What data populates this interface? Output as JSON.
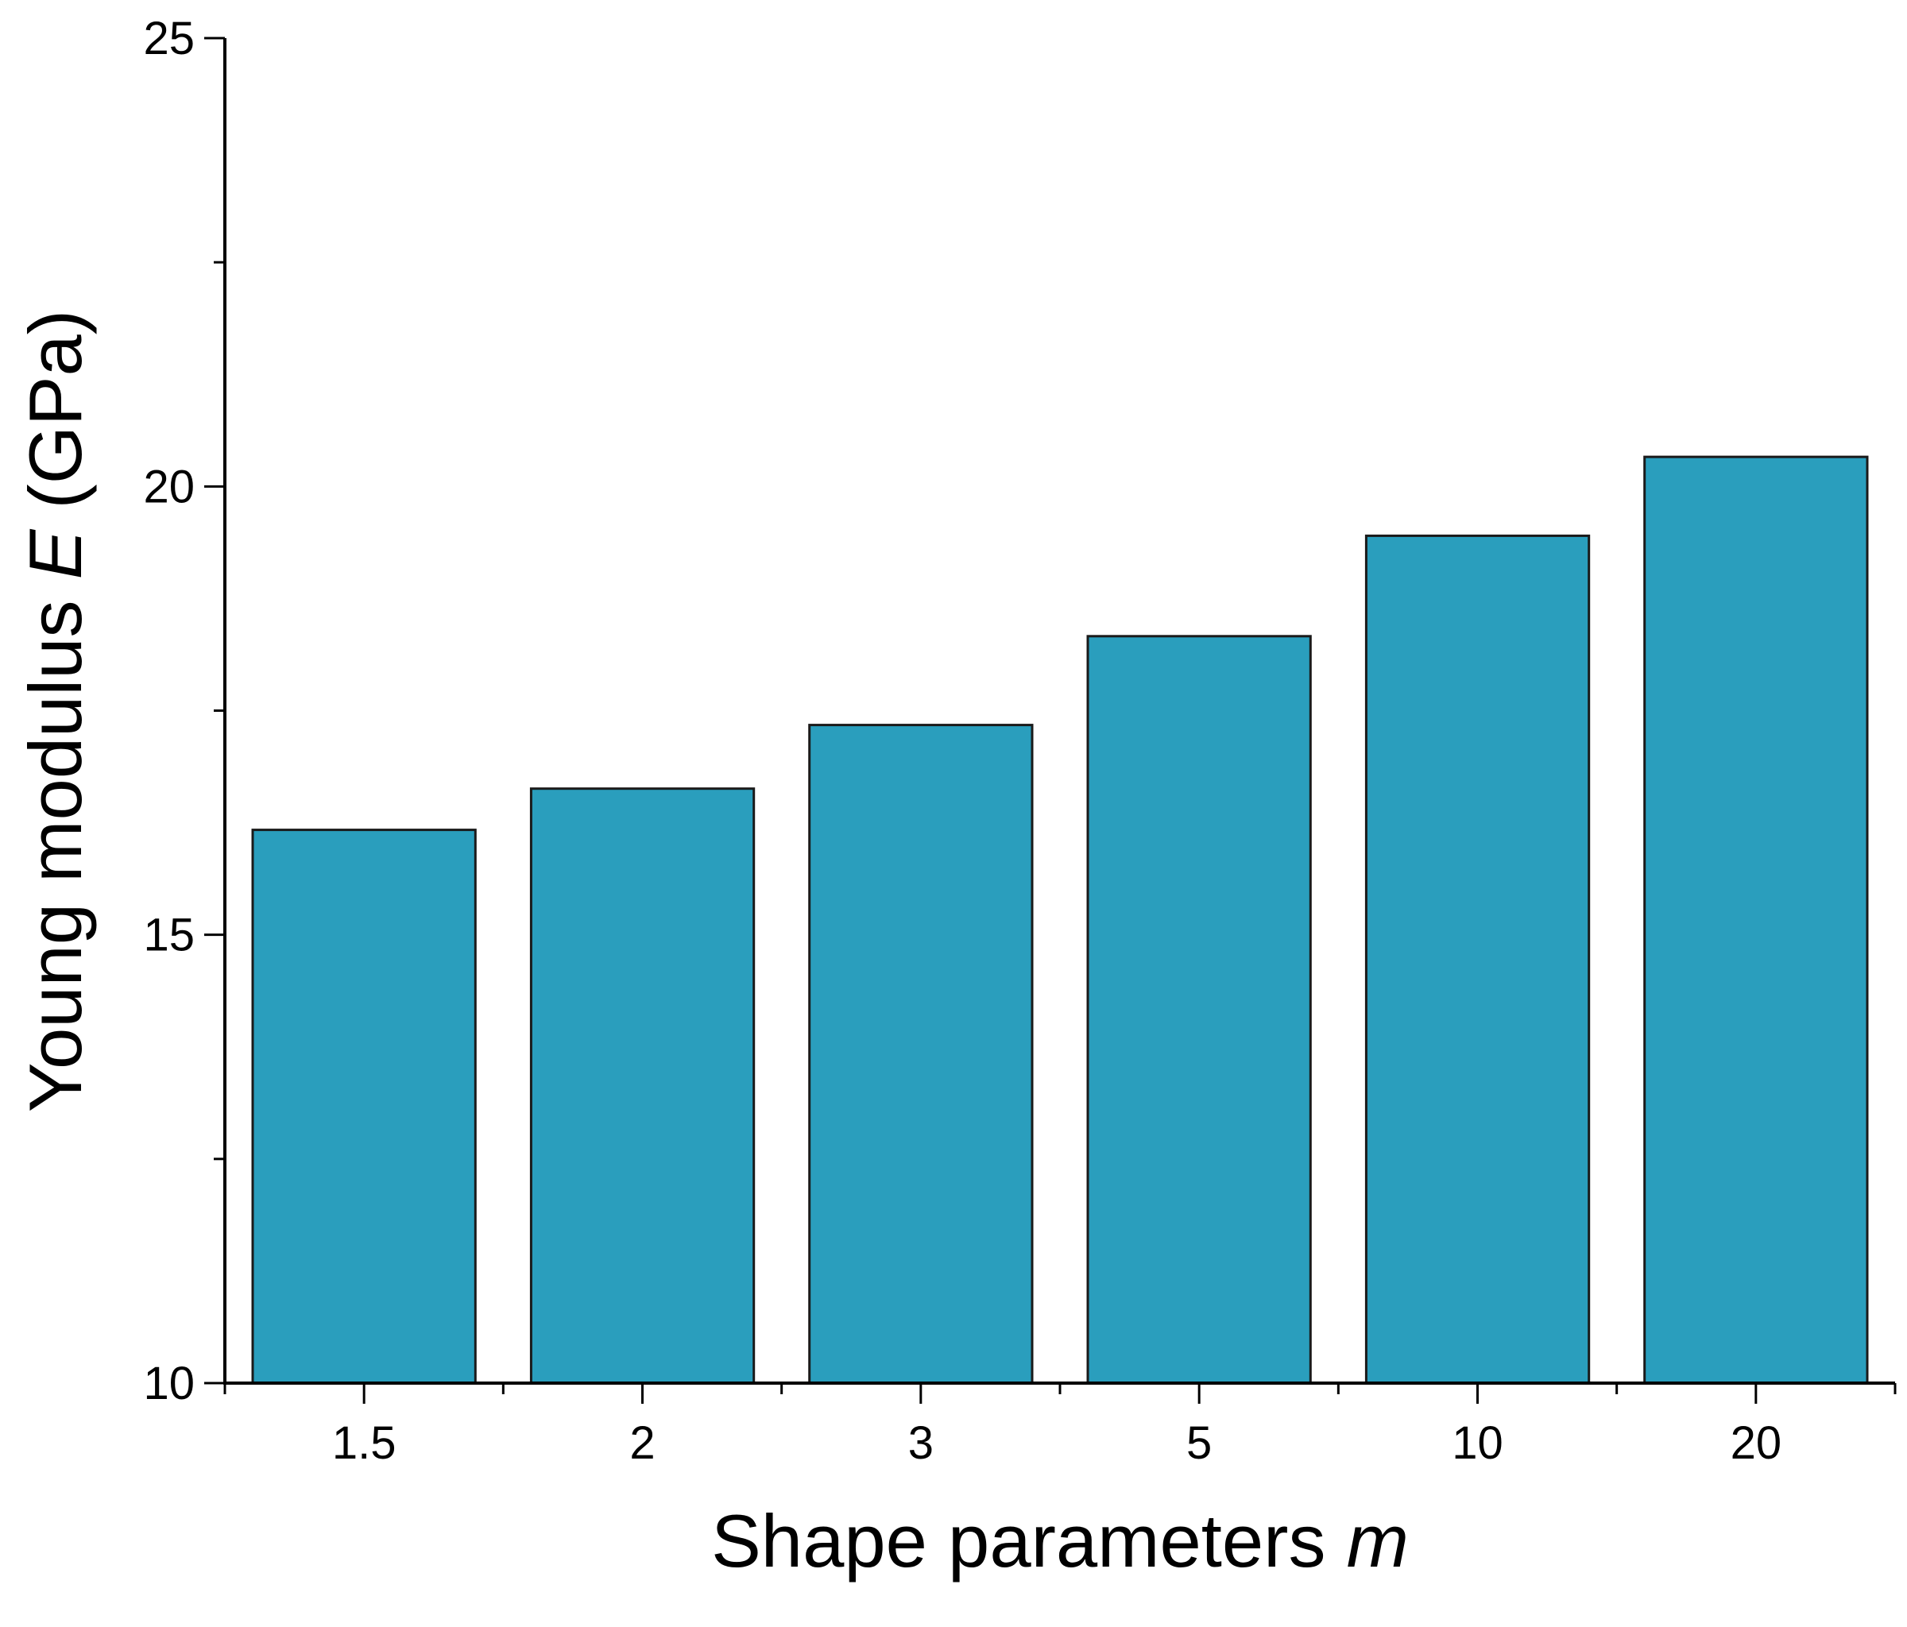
{
  "chart_data": {
    "type": "bar",
    "categories": [
      "1.5",
      "2",
      "3",
      "5",
      "10",
      "20"
    ],
    "values": [
      16.17,
      16.63,
      17.34,
      18.33,
      19.45,
      20.33
    ],
    "ylim": [
      10,
      25
    ],
    "yticks": [
      "10",
      "15",
      "20",
      "25"
    ],
    "xlabel": {
      "text": "Shape parameters ",
      "symbol": "m"
    },
    "ylabel": {
      "text": "Young modulus ",
      "symbol": "E",
      "unit": " (GPa)"
    },
    "bar_color": "#2A9EBD",
    "bar_edge_color": "#1a1a1a",
    "grid": false,
    "legend": "none"
  }
}
